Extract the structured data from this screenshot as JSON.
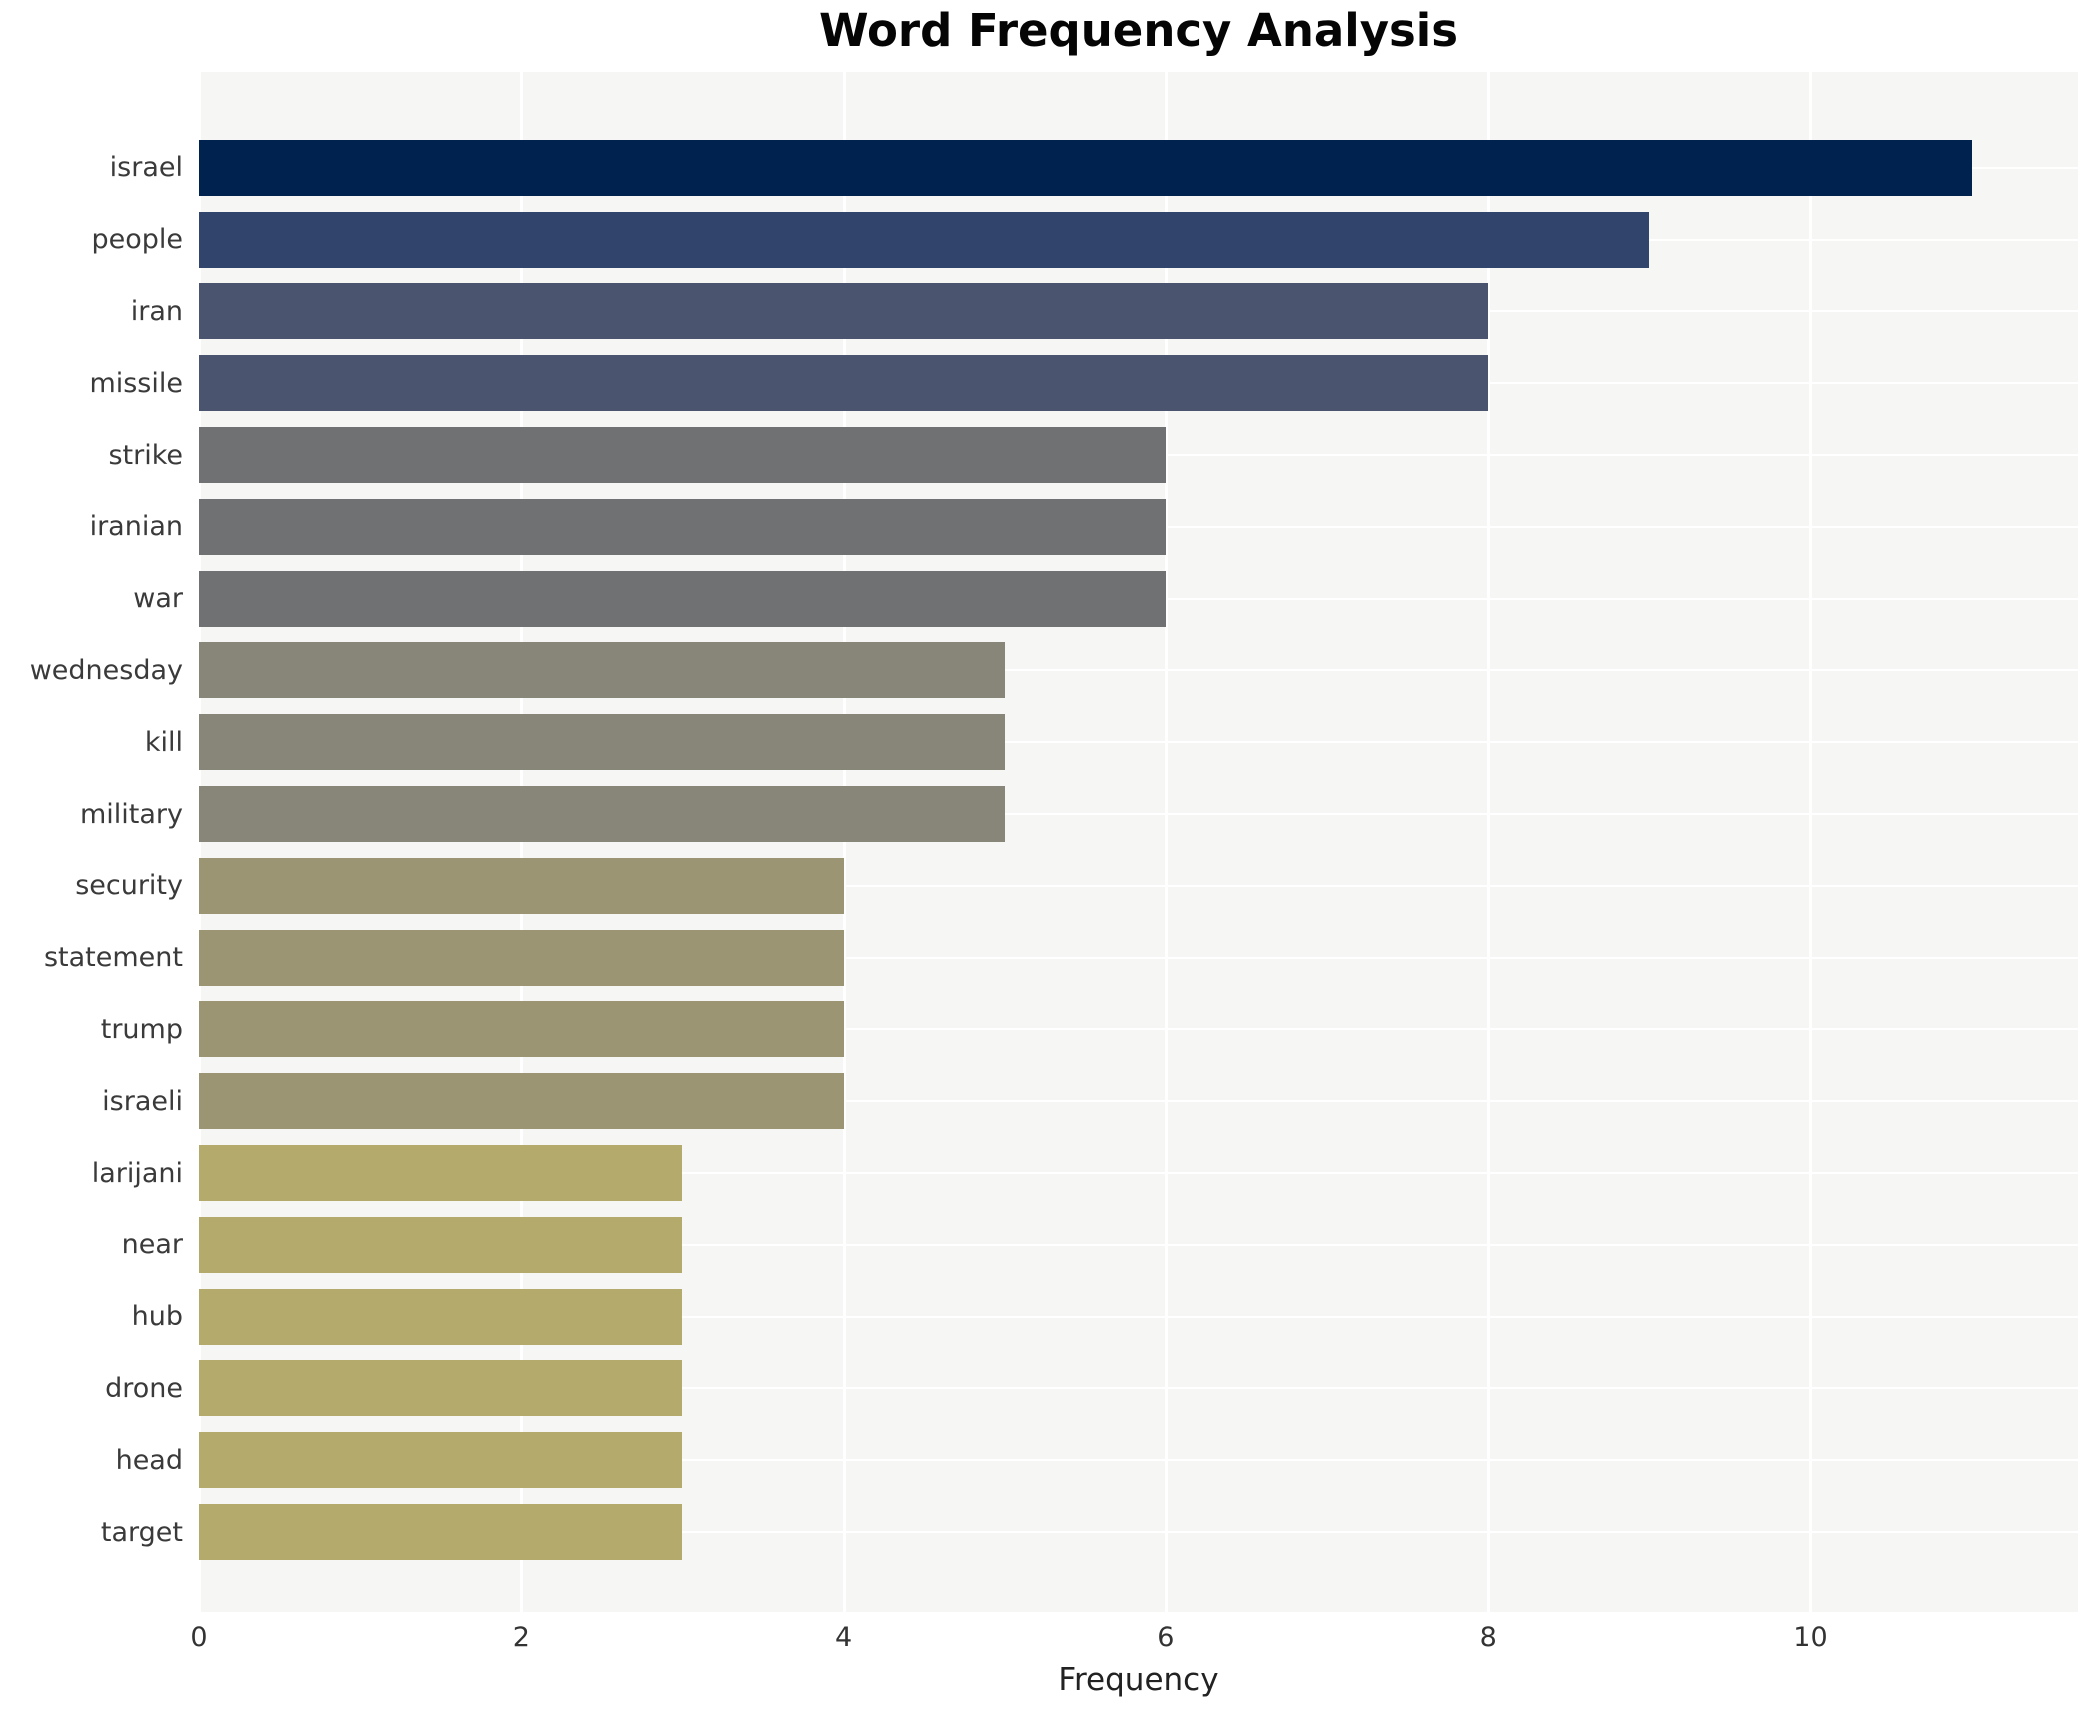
{
  "chart_data": {
    "type": "bar",
    "orientation": "horizontal",
    "title": "Word Frequency Analysis",
    "xlabel": "Frequency",
    "ylabel": "",
    "categories": [
      "israel",
      "people",
      "iran",
      "missile",
      "strike",
      "iranian",
      "war",
      "wednesday",
      "kill",
      "military",
      "security",
      "statement",
      "trump",
      "israeli",
      "larijani",
      "near",
      "hub",
      "drone",
      "head",
      "target"
    ],
    "values": [
      11,
      9,
      8,
      8,
      6,
      6,
      6,
      5,
      5,
      5,
      4,
      4,
      4,
      4,
      3,
      3,
      3,
      3,
      3,
      3
    ],
    "bar_colors": [
      "#00224e",
      "#31446b",
      "#4b546f",
      "#4b546f",
      "#707173",
      "#707173",
      "#707173",
      "#878679",
      "#878679",
      "#878679",
      "#9c9574",
      "#9c9574",
      "#9c9574",
      "#9c9574",
      "#b4aa6b",
      "#b4aa6b",
      "#b4aa6b",
      "#b4aa6b",
      "#b4aa6b",
      "#b4aa6b"
    ],
    "xticks": [
      0,
      2,
      4,
      6,
      8,
      10
    ],
    "xlim": [
      0,
      11.66
    ],
    "grid": true,
    "legend": "none",
    "plot_background": "#f6f6f4",
    "grid_color": "#ffffff"
  }
}
